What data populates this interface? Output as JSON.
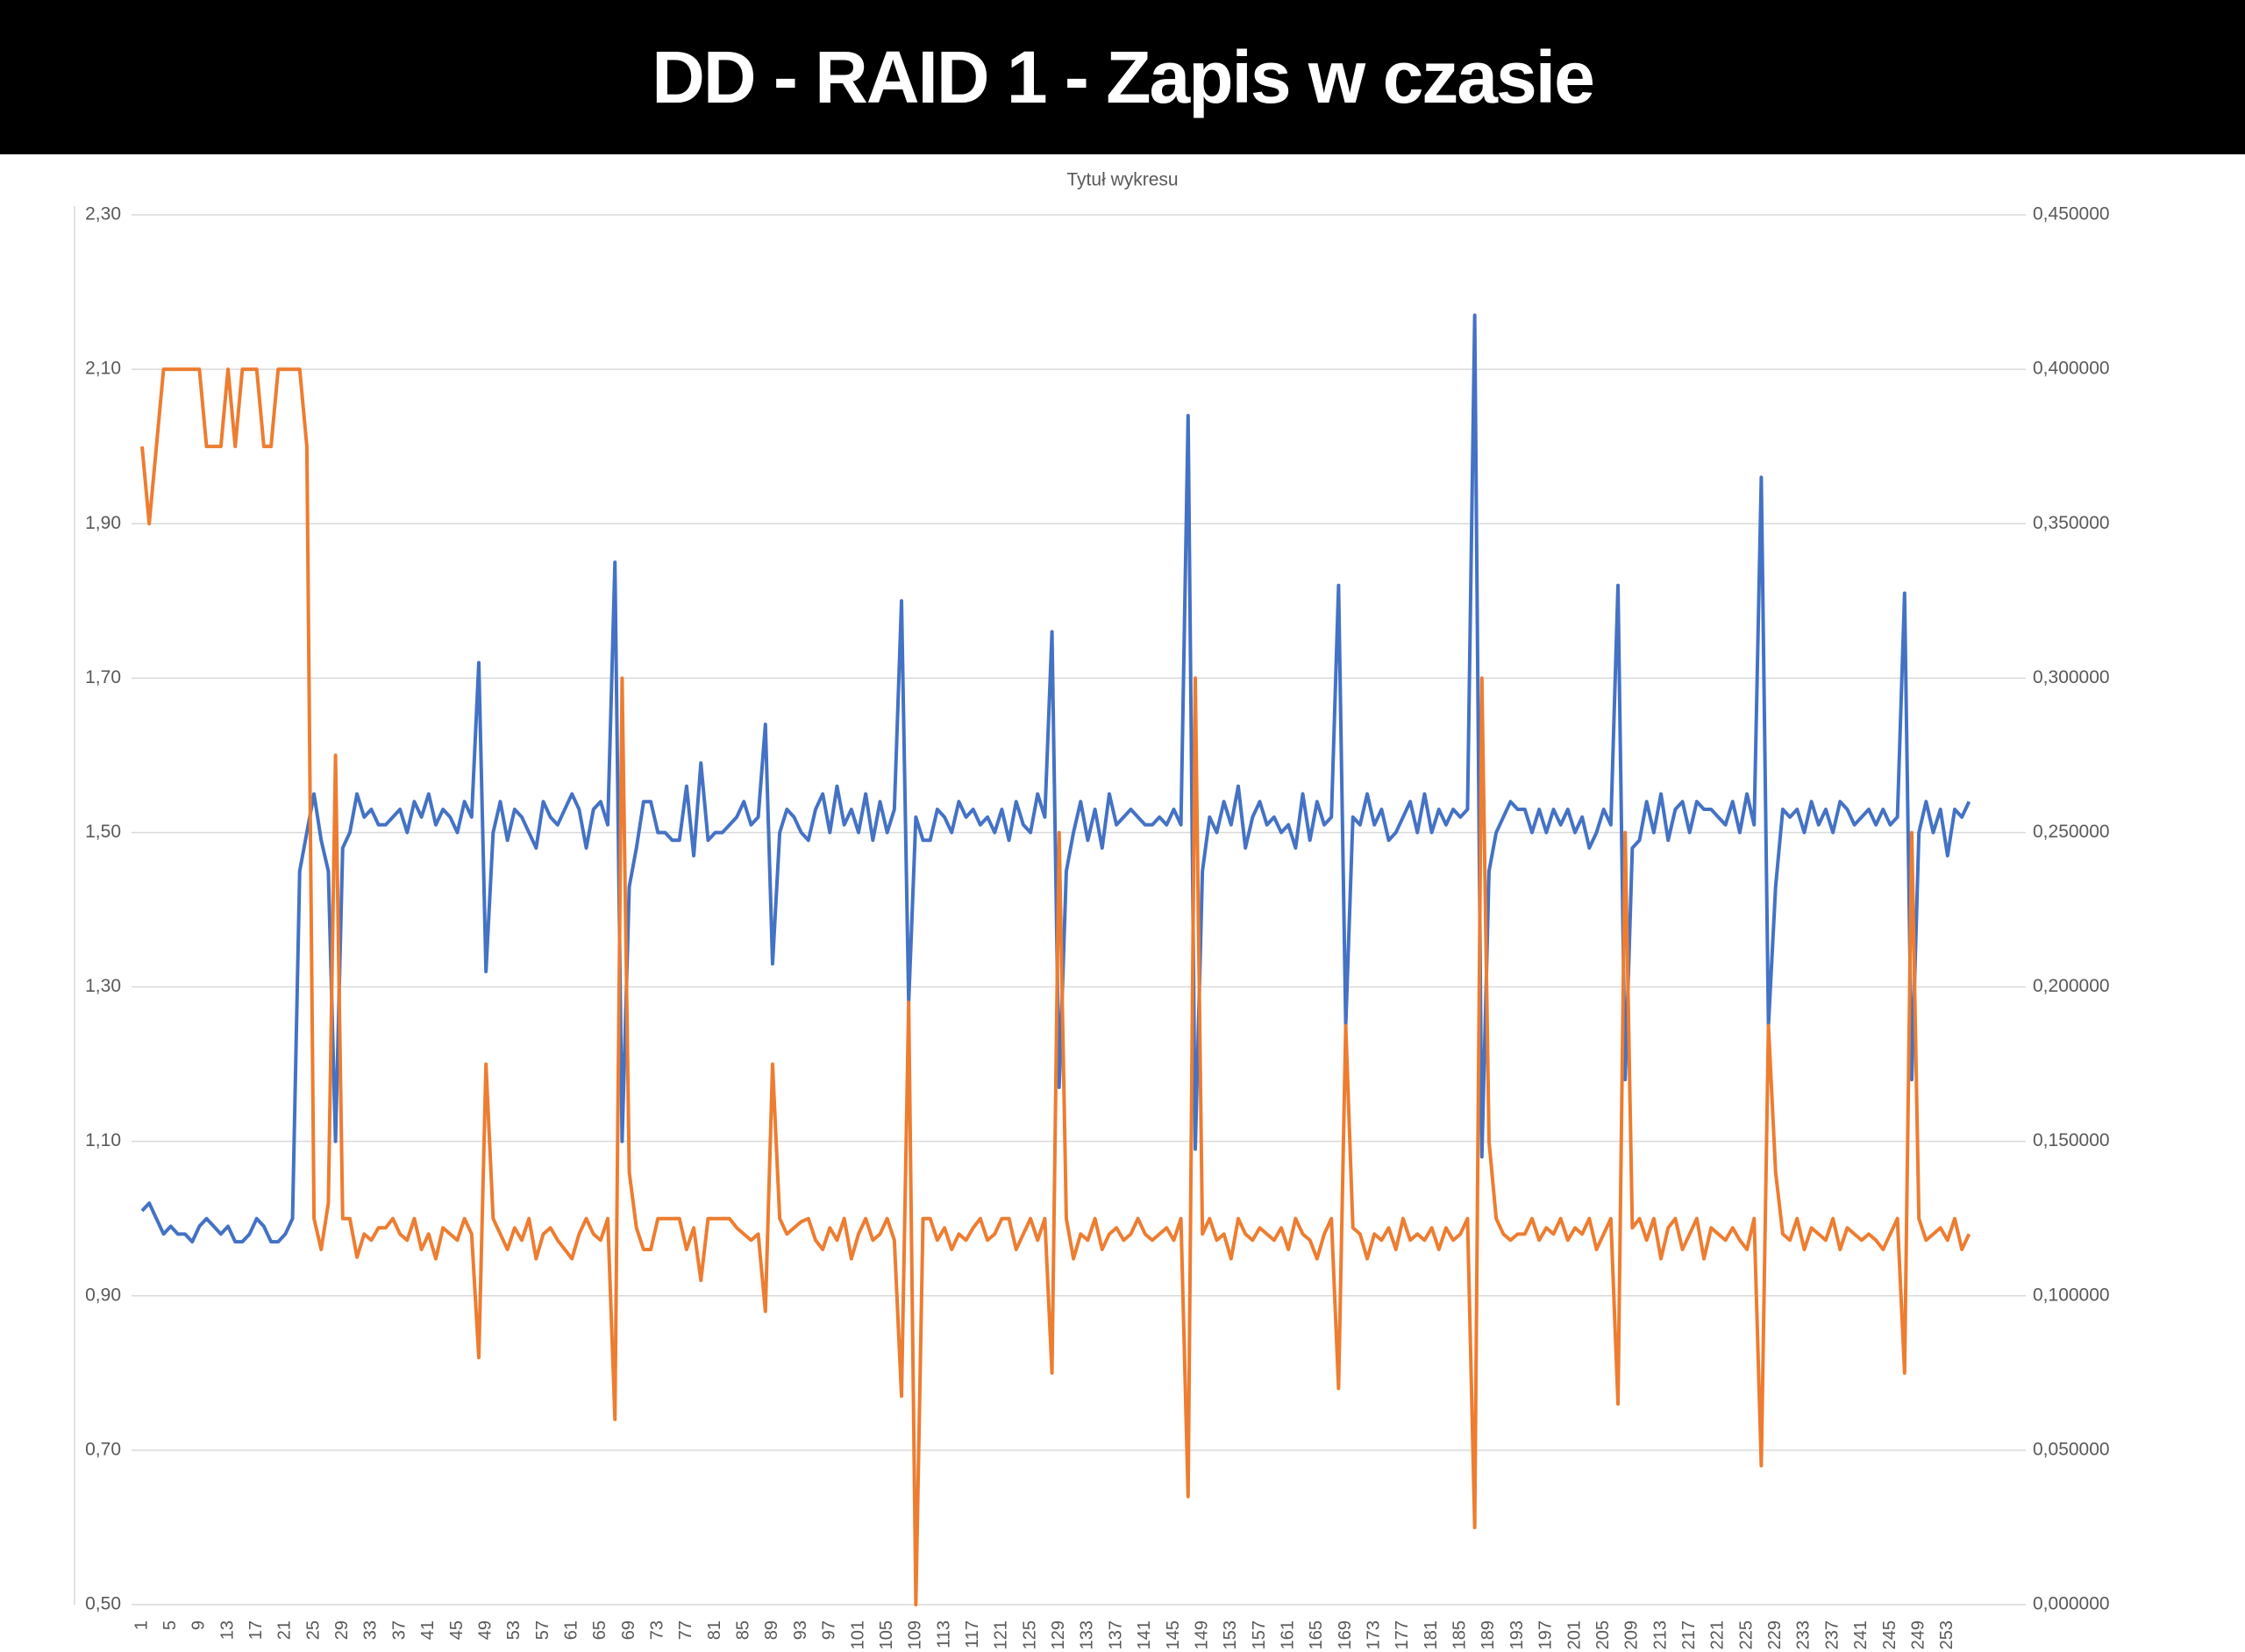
{
  "chart_data": {
    "type": "line",
    "title": "DD - RAID 1 - Zapis w czasie",
    "subtitle": "Tytuł wykresu",
    "categories": [
      1,
      null,
      null,
      null,
      5,
      null,
      null,
      null,
      9,
      null,
      null,
      null,
      13,
      null,
      null,
      null,
      17,
      null,
      null,
      null,
      21,
      null,
      null,
      null,
      25,
      null,
      null,
      null,
      29,
      null,
      null,
      null,
      33,
      null,
      null,
      null,
      37,
      null,
      null,
      null,
      41,
      null,
      null,
      null,
      45,
      null,
      null,
      null,
      49,
      null,
      null,
      null,
      53,
      null,
      null,
      null,
      57,
      null,
      null,
      null,
      61,
      null,
      null,
      null,
      65,
      null,
      null,
      null,
      69,
      null,
      null,
      null,
      73,
      null,
      null,
      null,
      77,
      null,
      null,
      null,
      81,
      null,
      null,
      null,
      85,
      null,
      null,
      null,
      89,
      null,
      null,
      null,
      93,
      null,
      null,
      null,
      97,
      null,
      null,
      null,
      101,
      null,
      null,
      null,
      105,
      null,
      null,
      null,
      109,
      null,
      null,
      null,
      113,
      null,
      null,
      null,
      117,
      null,
      null,
      null,
      121,
      null,
      null,
      null,
      125,
      null,
      null,
      null,
      129,
      null,
      null,
      null,
      133,
      null,
      null,
      null,
      137,
      null,
      null,
      null,
      141,
      null,
      null,
      null,
      145,
      null,
      null,
      null,
      149,
      null,
      null,
      null,
      153,
      null,
      null,
      null,
      157,
      null,
      null,
      null,
      161,
      null,
      null,
      null,
      165,
      null,
      null,
      null,
      169,
      null,
      null,
      null,
      173,
      null,
      null,
      null,
      177,
      null,
      null,
      null,
      181,
      null,
      null,
      null,
      185,
      null,
      null,
      null,
      189,
      null,
      null,
      null,
      193,
      null,
      null,
      null,
      197,
      null,
      null,
      null,
      201,
      null,
      null,
      null,
      205,
      null,
      null,
      null,
      209,
      null,
      null,
      null,
      213,
      null,
      null,
      null,
      217,
      null,
      null,
      null,
      221,
      null,
      null,
      null,
      225,
      null,
      null,
      null,
      229,
      null,
      null,
      null,
      233,
      null,
      null,
      null,
      237,
      null,
      null,
      null,
      241,
      null,
      null,
      null,
      245,
      null,
      null,
      null,
      249,
      null,
      null,
      null,
      253,
      null,
      null,
      null
    ],
    "series": [
      {
        "color": "#4472c4",
        "values": [
          1.01,
          1.02,
          1.0,
          0.98,
          0.99,
          0.98,
          0.98,
          0.97,
          0.99,
          1.0,
          0.99,
          0.98,
          0.99,
          0.97,
          0.97,
          0.98,
          1.0,
          0.99,
          0.97,
          0.97,
          0.98,
          1.0,
          1.45,
          1.5,
          1.55,
          1.49,
          1.45,
          1.1,
          1.48,
          1.5,
          1.55,
          1.52,
          1.53,
          1.51,
          1.51,
          1.52,
          1.53,
          1.5,
          1.54,
          1.52,
          1.55,
          1.51,
          1.53,
          1.52,
          1.5,
          1.54,
          1.52,
          1.72,
          1.32,
          1.5,
          1.54,
          1.49,
          1.53,
          1.52,
          1.5,
          1.48,
          1.54,
          1.52,
          1.51,
          1.53,
          1.55,
          1.53,
          1.48,
          1.53,
          1.54,
          1.51,
          1.85,
          1.1,
          1.43,
          1.48,
          1.54,
          1.54,
          1.5,
          1.5,
          1.49,
          1.49,
          1.56,
          1.47,
          1.59,
          1.49,
          1.5,
          1.5,
          1.51,
          1.52,
          1.54,
          1.51,
          1.52,
          1.64,
          1.33,
          1.5,
          1.53,
          1.52,
          1.5,
          1.49,
          1.53,
          1.55,
          1.5,
          1.56,
          1.51,
          1.53,
          1.5,
          1.55,
          1.49,
          1.54,
          1.5,
          1.53,
          1.8,
          1.28,
          1.52,
          1.49,
          1.49,
          1.53,
          1.52,
          1.5,
          1.54,
          1.52,
          1.53,
          1.51,
          1.52,
          1.5,
          1.53,
          1.49,
          1.54,
          1.51,
          1.5,
          1.55,
          1.52,
          1.76,
          1.17,
          1.45,
          1.5,
          1.54,
          1.49,
          1.53,
          1.48,
          1.55,
          1.51,
          1.52,
          1.53,
          1.52,
          1.51,
          1.51,
          1.52,
          1.51,
          1.53,
          1.51,
          2.04,
          1.09,
          1.45,
          1.52,
          1.5,
          1.54,
          1.51,
          1.56,
          1.48,
          1.52,
          1.54,
          1.51,
          1.52,
          1.5,
          1.51,
          1.48,
          1.55,
          1.49,
          1.54,
          1.51,
          1.52,
          1.82,
          1.25,
          1.52,
          1.51,
          1.55,
          1.51,
          1.53,
          1.49,
          1.5,
          1.52,
          1.54,
          1.5,
          1.55,
          1.5,
          1.53,
          1.51,
          1.53,
          1.52,
          1.53,
          2.17,
          1.08,
          1.45,
          1.5,
          1.52,
          1.54,
          1.53,
          1.53,
          1.5,
          1.53,
          1.5,
          1.53,
          1.51,
          1.53,
          1.5,
          1.52,
          1.48,
          1.5,
          1.53,
          1.51,
          1.82,
          1.18,
          1.48,
          1.49,
          1.54,
          1.5,
          1.55,
          1.49,
          1.53,
          1.54,
          1.5,
          1.54,
          1.53,
          1.53,
          1.52,
          1.51,
          1.54,
          1.5,
          1.55,
          1.51,
          1.96,
          1.25,
          1.43,
          1.53,
          1.52,
          1.53,
          1.5,
          1.54,
          1.51,
          1.53,
          1.5,
          1.54,
          1.53,
          1.51,
          1.52,
          1.53,
          1.51,
          1.53,
          1.51,
          1.52,
          1.81,
          1.18,
          1.5,
          1.54,
          1.5,
          1.53,
          1.47,
          1.53,
          1.52,
          1.54
        ]
      },
      {
        "color": "#ed7d31",
        "axis": "y2",
        "values": [
          0.375,
          0.35,
          0.375,
          0.4,
          0.4,
          0.4,
          0.4,
          0.4,
          0.4,
          0.375,
          0.375,
          0.375,
          0.4,
          0.375,
          0.4,
          0.4,
          0.4,
          0.375,
          0.375,
          0.4,
          0.4,
          0.4,
          0.4,
          0.375,
          0.125,
          0.115,
          0.13,
          0.275,
          0.125,
          0.125,
          0.1125,
          0.12,
          0.118,
          0.122,
          0.122,
          0.125,
          0.12,
          0.118,
          0.125,
          0.115,
          0.12,
          0.112,
          0.122,
          0.12,
          0.118,
          0.125,
          0.12,
          0.08,
          0.175,
          0.125,
          0.12,
          0.115,
          0.122,
          0.118,
          0.125,
          0.112,
          0.12,
          0.122,
          0.118,
          0.115,
          0.112,
          0.12,
          0.125,
          0.12,
          0.118,
          0.125,
          0.06,
          0.3,
          0.14,
          0.122,
          0.115,
          0.115,
          0.125,
          0.125,
          0.125,
          0.125,
          0.115,
          0.122,
          0.105,
          0.125,
          0.125,
          0.125,
          0.125,
          0.122,
          0.12,
          0.118,
          0.12,
          0.095,
          0.175,
          0.125,
          0.12,
          0.122,
          0.124,
          0.125,
          0.118,
          0.115,
          0.122,
          0.118,
          0.125,
          0.112,
          0.12,
          0.125,
          0.118,
          0.12,
          0.125,
          0.118,
          0.0675,
          0.195,
          0,
          0.125,
          0.125,
          0.118,
          0.122,
          0.115,
          0.12,
          0.118,
          0.122,
          0.125,
          0.118,
          0.12,
          0.125,
          0.125,
          0.115,
          0.12,
          0.125,
          0.118,
          0.125,
          0.075,
          0.25,
          0.125,
          0.112,
          0.12,
          0.118,
          0.125,
          0.115,
          0.12,
          0.122,
          0.118,
          0.12,
          0.125,
          0.12,
          0.118,
          0.12,
          0.122,
          0.118,
          0.125,
          0.035,
          0.3,
          0.12,
          0.125,
          0.118,
          0.12,
          0.112,
          0.125,
          0.12,
          0.118,
          0.122,
          0.12,
          0.118,
          0.122,
          0.115,
          0.125,
          0.12,
          0.118,
          0.112,
          0.12,
          0.125,
          0.07,
          0.1875,
          0.122,
          0.12,
          0.112,
          0.12,
          0.118,
          0.122,
          0.115,
          0.125,
          0.118,
          0.12,
          0.118,
          0.122,
          0.115,
          0.122,
          0.118,
          0.12,
          0.125,
          0.025,
          0.3,
          0.15,
          0.125,
          0.12,
          0.118,
          0.12,
          0.12,
          0.125,
          0.118,
          0.122,
          0.12,
          0.125,
          0.118,
          0.122,
          0.12,
          0.125,
          0.115,
          0.12,
          0.125,
          0.065,
          0.25,
          0.122,
          0.125,
          0.118,
          0.125,
          0.112,
          0.122,
          0.125,
          0.115,
          0.12,
          0.125,
          0.112,
          0.122,
          0.12,
          0.118,
          0.122,
          0.118,
          0.115,
          0.125,
          0.045,
          0.1875,
          0.14,
          0.12,
          0.118,
          0.125,
          0.115,
          0.122,
          0.12,
          0.118,
          0.125,
          0.115,
          0.122,
          0.12,
          0.118,
          0.12,
          0.118,
          0.115,
          0.12,
          0.125,
          0.075,
          0.25,
          0.125,
          0.118,
          0.12,
          0.122,
          0.118,
          0.125,
          0.115,
          0.12
        ]
      }
    ],
    "ylim": [
      0.5,
      2.3
    ],
    "yticks": [
      {
        "value": 0.5,
        "label": "0,50"
      },
      {
        "value": 0.7,
        "label": "0,70"
      },
      {
        "value": 0.9,
        "label": "0,90"
      },
      {
        "value": 1.1,
        "label": "1,10"
      },
      {
        "value": 1.3,
        "label": "1,30"
      },
      {
        "value": 1.5,
        "label": "1,50"
      },
      {
        "value": 1.7,
        "label": "1,70"
      },
      {
        "value": 1.9,
        "label": "1,90"
      },
      {
        "value": 2.1,
        "label": "2,10"
      },
      {
        "value": 2.3,
        "label": "2,30"
      }
    ],
    "y2lim": [
      0,
      0.45
    ],
    "y2ticks": [
      {
        "value": 0,
        "label": "0,000000"
      },
      {
        "value": 0.05,
        "label": "0,050000"
      },
      {
        "value": 0.1,
        "label": "0,100000"
      },
      {
        "value": 0.15,
        "label": "0,150000"
      },
      {
        "value": 0.2,
        "label": "0,200000"
      },
      {
        "value": 0.25,
        "label": "0,250000"
      },
      {
        "value": 0.3,
        "label": "0,300000"
      },
      {
        "value": 0.35,
        "label": "0,350000"
      },
      {
        "value": 0.4,
        "label": "0,400000"
      },
      {
        "value": 0.45,
        "label": "0,450000"
      }
    ],
    "grid": true
  }
}
